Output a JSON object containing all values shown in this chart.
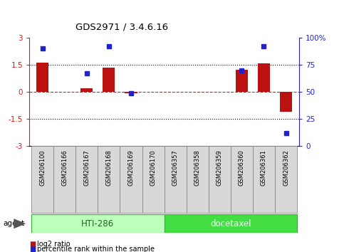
{
  "title": "GDS2971 / 3.4.6.16",
  "samples": [
    "GSM206100",
    "GSM206166",
    "GSM206167",
    "GSM206168",
    "GSM206169",
    "GSM206170",
    "GSM206357",
    "GSM206358",
    "GSM206359",
    "GSM206360",
    "GSM206361",
    "GSM206362"
  ],
  "log2_ratio": [
    1.62,
    0.0,
    0.22,
    1.35,
    -0.07,
    0.0,
    0.0,
    0.0,
    0.0,
    1.22,
    1.57,
    -1.1
  ],
  "percentile": [
    90,
    null,
    67,
    92,
    49,
    null,
    null,
    null,
    null,
    70,
    92,
    12
  ],
  "ylim": [
    -3,
    3
  ],
  "bar_color": "#bb1111",
  "dot_color": "#2222cc",
  "hline_color": "#cc2222",
  "group1_label": "HTI-286",
  "group2_label": "docetaxel",
  "agent_label": "agent",
  "group1_color": "#bbffbb",
  "group2_color": "#44dd44",
  "legend_red": "log2 ratio",
  "legend_blue": "percentile rank within the sample",
  "bar_width": 0.55,
  "plot_bg": "#ffffff"
}
